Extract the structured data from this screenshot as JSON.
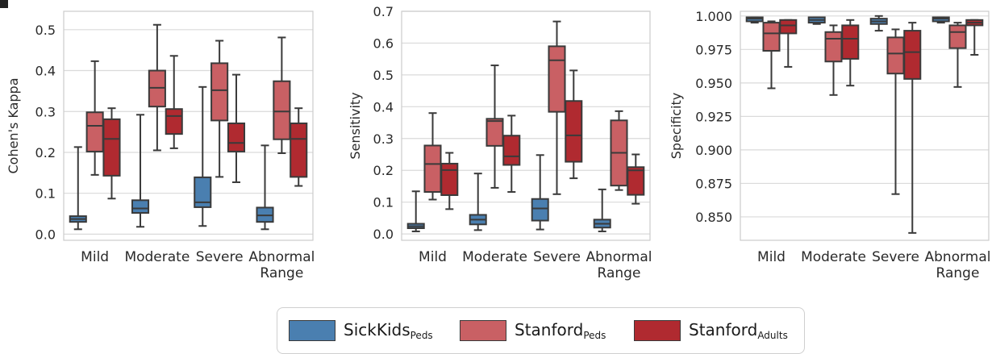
{
  "colors": {
    "sickkids": "#4a7fb0",
    "stanford_peds": "#c96064",
    "stanford_adults": "#b02a30",
    "grid": "#dadada",
    "axis": "#cccccc",
    "line": "#3a3a3a",
    "text": "#2a2a2a"
  },
  "legend": {
    "items": [
      {
        "base": "SickKids",
        "sub": "Peds"
      },
      {
        "base": "Stanford",
        "sub": "Peds"
      },
      {
        "base": "Stanford",
        "sub": "Adults"
      }
    ]
  },
  "chart_data": [
    {
      "type": "box",
      "ylabel": "Cohen's Kappa",
      "ylim": [
        -0.015,
        0.545
      ],
      "yticks": [
        "0.0",
        "0.1",
        "0.2",
        "0.3",
        "0.4",
        "0.5"
      ],
      "categories": [
        "Mild",
        "Moderate",
        "Severe",
        "Abnormal|Range"
      ],
      "series": [
        {
          "name": "SickKids_Peds",
          "boxes": [
            {
              "min": 0.012,
              "q1": 0.03,
              "median": 0.037,
              "q3": 0.044,
              "max": 0.213
            },
            {
              "min": 0.018,
              "q1": 0.052,
              "median": 0.063,
              "q3": 0.083,
              "max": 0.292
            },
            {
              "min": 0.02,
              "q1": 0.066,
              "median": 0.078,
              "q3": 0.139,
              "max": 0.36
            },
            {
              "min": 0.012,
              "q1": 0.03,
              "median": 0.046,
              "q3": 0.065,
              "max": 0.217
            }
          ]
        },
        {
          "name": "Stanford_Peds",
          "boxes": [
            {
              "min": 0.145,
              "q1": 0.202,
              "median": 0.265,
              "q3": 0.298,
              "max": 0.423
            },
            {
              "min": 0.205,
              "q1": 0.312,
              "median": 0.358,
              "q3": 0.4,
              "max": 0.512
            },
            {
              "min": 0.14,
              "q1": 0.278,
              "median": 0.352,
              "q3": 0.418,
              "max": 0.473
            },
            {
              "min": 0.198,
              "q1": 0.232,
              "median": 0.3,
              "q3": 0.374,
              "max": 0.481
            }
          ]
        },
        {
          "name": "Stanford_Adults",
          "boxes": [
            {
              "min": 0.087,
              "q1": 0.143,
              "median": 0.233,
              "q3": 0.281,
              "max": 0.308
            },
            {
              "min": 0.21,
              "q1": 0.245,
              "median": 0.289,
              "q3": 0.306,
              "max": 0.436
            },
            {
              "min": 0.127,
              "q1": 0.202,
              "median": 0.223,
              "q3": 0.271,
              "max": 0.39
            },
            {
              "min": 0.118,
              "q1": 0.14,
              "median": 0.233,
              "q3": 0.271,
              "max": 0.308
            }
          ]
        }
      ]
    },
    {
      "type": "box",
      "ylabel": "Sensitivity",
      "ylim": [
        -0.02,
        0.7
      ],
      "yticks": [
        "0.0",
        "0.1",
        "0.2",
        "0.3",
        "0.4",
        "0.5",
        "0.6",
        "0.7"
      ],
      "categories": [
        "Mild",
        "Moderate",
        "Severe",
        "Abnormal|Range"
      ],
      "series": [
        {
          "name": "SickKids_Peds",
          "boxes": [
            {
              "min": 0.008,
              "q1": 0.018,
              "median": 0.024,
              "q3": 0.032,
              "max": 0.134
            },
            {
              "min": 0.012,
              "q1": 0.03,
              "median": 0.045,
              "q3": 0.06,
              "max": 0.19
            },
            {
              "min": 0.014,
              "q1": 0.042,
              "median": 0.08,
              "q3": 0.11,
              "max": 0.248
            },
            {
              "min": 0.008,
              "q1": 0.02,
              "median": 0.032,
              "q3": 0.045,
              "max": 0.14
            }
          ]
        },
        {
          "name": "Stanford_Peds",
          "boxes": [
            {
              "min": 0.108,
              "q1": 0.132,
              "median": 0.22,
              "q3": 0.278,
              "max": 0.38
            },
            {
              "min": 0.145,
              "q1": 0.277,
              "median": 0.355,
              "q3": 0.362,
              "max": 0.53
            },
            {
              "min": 0.125,
              "q1": 0.384,
              "median": 0.546,
              "q3": 0.59,
              "max": 0.668
            },
            {
              "min": 0.138,
              "q1": 0.152,
              "median": 0.255,
              "q3": 0.357,
              "max": 0.386
            }
          ]
        },
        {
          "name": "Stanford_Adults",
          "boxes": [
            {
              "min": 0.078,
              "q1": 0.122,
              "median": 0.201,
              "q3": 0.221,
              "max": 0.255
            },
            {
              "min": 0.132,
              "q1": 0.217,
              "median": 0.244,
              "q3": 0.309,
              "max": 0.372
            },
            {
              "min": 0.175,
              "q1": 0.227,
              "median": 0.31,
              "q3": 0.418,
              "max": 0.514
            },
            {
              "min": 0.095,
              "q1": 0.123,
              "median": 0.2,
              "q3": 0.21,
              "max": 0.25
            }
          ]
        }
      ]
    },
    {
      "type": "box",
      "ylabel": "Specificity",
      "ylim": [
        0.8325,
        1.0035
      ],
      "yticks": [
        "0.850",
        "0.875",
        "0.900",
        "0.925",
        "0.950",
        "0.975",
        "1.000"
      ],
      "categories": [
        "Mild",
        "Moderate",
        "Severe",
        "Abnormal|Range"
      ],
      "series": [
        {
          "name": "SickKids_Peds",
          "boxes": [
            {
              "min": 0.995,
              "q1": 0.996,
              "median": 0.998,
              "q3": 0.999,
              "max": 0.999
            },
            {
              "min": 0.994,
              "q1": 0.995,
              "median": 0.997,
              "q3": 0.999,
              "max": 0.999
            },
            {
              "min": 0.989,
              "q1": 0.994,
              "median": 0.996,
              "q3": 0.998,
              "max": 1.0
            },
            {
              "min": 0.995,
              "q1": 0.996,
              "median": 0.998,
              "q3": 0.999,
              "max": 0.999
            }
          ]
        },
        {
          "name": "Stanford_Peds",
          "boxes": [
            {
              "min": 0.946,
              "q1": 0.974,
              "median": 0.987,
              "q3": 0.995,
              "max": 0.996
            },
            {
              "min": 0.941,
              "q1": 0.966,
              "median": 0.983,
              "q3": 0.988,
              "max": 0.993
            },
            {
              "min": 0.867,
              "q1": 0.957,
              "median": 0.972,
              "q3": 0.984,
              "max": 0.99
            },
            {
              "min": 0.947,
              "q1": 0.976,
              "median": 0.988,
              "q3": 0.993,
              "max": 0.995
            }
          ]
        },
        {
          "name": "Stanford_Adults",
          "boxes": [
            {
              "min": 0.962,
              "q1": 0.987,
              "median": 0.993,
              "q3": 0.997,
              "max": 0.997
            },
            {
              "min": 0.948,
              "q1": 0.968,
              "median": 0.983,
              "q3": 0.993,
              "max": 0.997
            },
            {
              "min": 0.838,
              "q1": 0.953,
              "median": 0.973,
              "q3": 0.989,
              "max": 0.995
            },
            {
              "min": 0.971,
              "q1": 0.993,
              "median": 0.995,
              "q3": 0.997,
              "max": 0.997
            }
          ]
        }
      ]
    }
  ]
}
